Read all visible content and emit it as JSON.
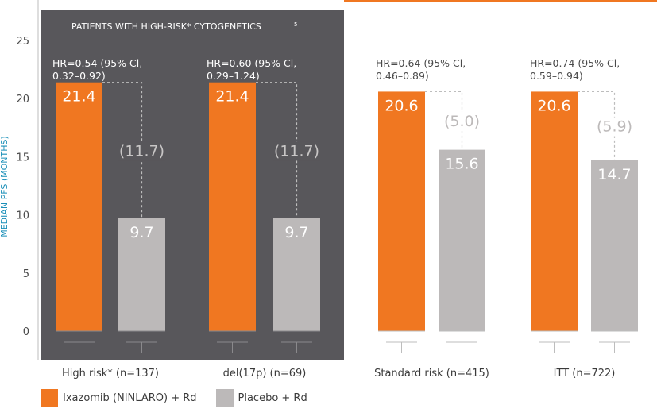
{
  "chart_data": {
    "type": "bar",
    "ylabel": "MEDIAN PFS (MONTHS)",
    "ylim": [
      0,
      25
    ],
    "yticks": [
      "0",
      "5",
      "10",
      "15",
      "20",
      "25"
    ],
    "highlight_panel": {
      "title": "PATIENTS WITH HIGH-RISK* CYTOGENETICS",
      "footnote": "5"
    },
    "categories": [
      "High risk* (n=137)",
      "del(17p) (n=69)",
      "Standard risk (n=415)",
      "ITT (n=722)"
    ],
    "series": [
      {
        "name": "Ixazomib (NINLARO) + Rd",
        "values": [
          21.4,
          21.4,
          20.6,
          20.6
        ],
        "labels": [
          "21.4",
          "21.4",
          "20.6",
          "20.6"
        ],
        "color": "#f07721"
      },
      {
        "name": "Placebo + Rd",
        "values": [
          9.7,
          9.7,
          15.6,
          14.7
        ],
        "labels": [
          "9.7",
          "9.7",
          "15.6",
          "14.7"
        ],
        "color": "#bcb9b9"
      }
    ],
    "differences": [
      "(11.7)",
      "(11.7)",
      "(5.0)",
      "(5.9)"
    ],
    "hazard_ratios": [
      [
        "HR=0.54 (95% Cl,",
        "0.32–0.92)"
      ],
      [
        "HR=0.60 (95% Cl,",
        "0.29–1.24)"
      ],
      [
        "HR=0.64 (95% Cl,",
        "0.46–0.89)"
      ],
      [
        "HR=0.74 (95% Cl,",
        "0.59–0.94)"
      ]
    ],
    "colors": {
      "accent": "#f07721",
      "placebo": "#bcb9b9",
      "panel": "#58575b",
      "axis_label": "#1a8fb8"
    }
  },
  "legend": {
    "items": [
      {
        "label": "Ixazomib (NINLARO) + Rd",
        "color": "#f07721"
      },
      {
        "label": "Placebo + Rd",
        "color": "#bcb9b9"
      }
    ]
  }
}
